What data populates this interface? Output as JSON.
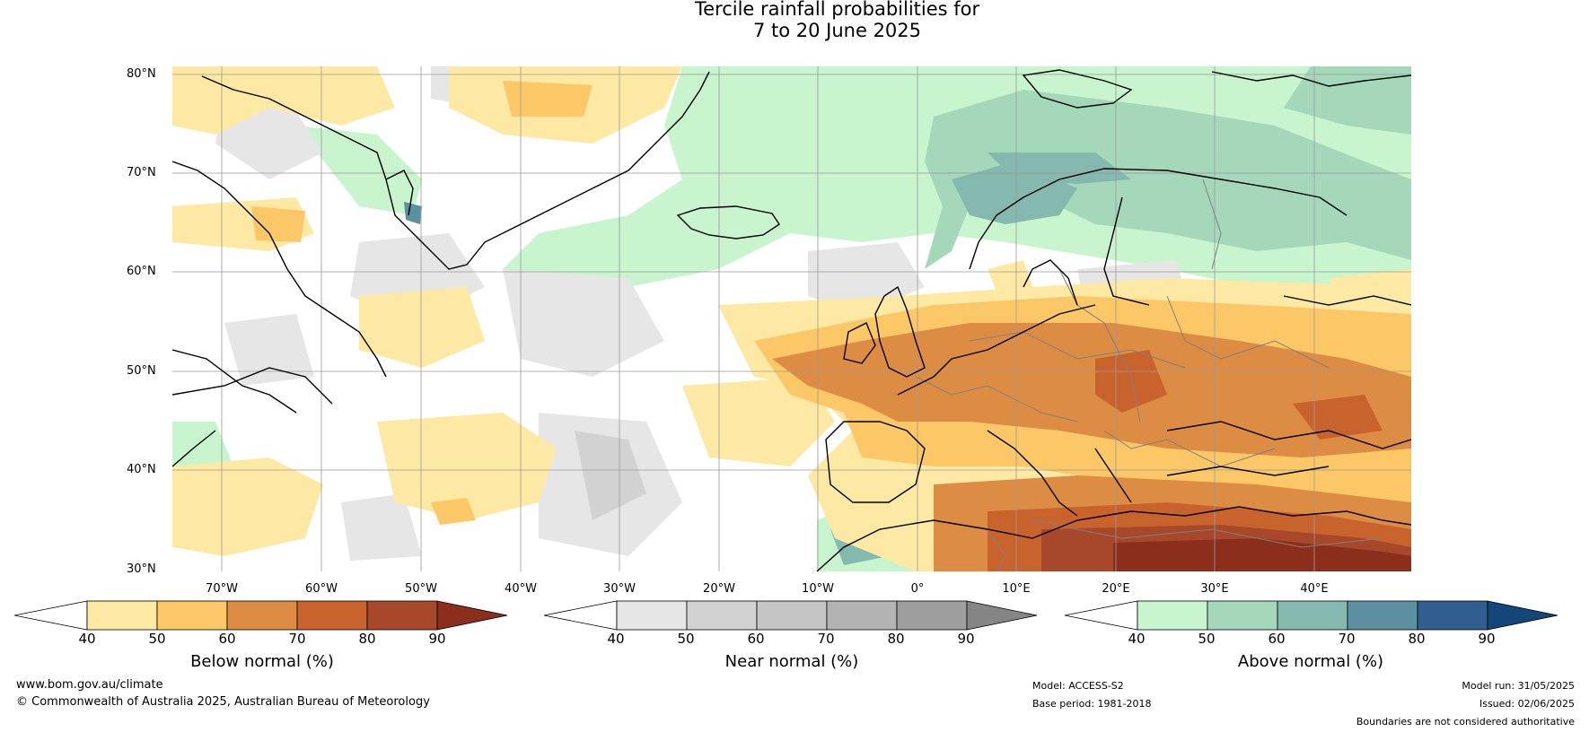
{
  "title": {
    "line1": "Tercile rainfall probabilities for",
    "line2": "7 to 20 June 2025"
  },
  "map": {
    "lat_labels": [
      "80°N",
      "70°N",
      "60°N",
      "50°N",
      "40°N",
      "30°N"
    ],
    "lon_labels": [
      "70°W",
      "60°W",
      "50°W",
      "40°W",
      "30°W",
      "20°W",
      "10°W",
      "0°",
      "10°E",
      "20°E",
      "30°E",
      "40°E"
    ],
    "colors": {
      "below": [
        "#fde9a4",
        "#fbc767",
        "#dd8d43",
        "#c8632e",
        "#a8482a",
        "#8b2e1c"
      ],
      "near": [
        "#e6e6e6",
        "#d2d2d2",
        "#c5c5c5",
        "#b3b3b3",
        "#9e9e9e",
        "#858585"
      ],
      "above": [
        "#c8f5cd",
        "#a5d8bb",
        "#85b8ae",
        "#5b90a0",
        "#2f5f8f",
        "#134779"
      ],
      "coastline": "#000000",
      "borders": "#808080"
    }
  },
  "colorbars": [
    {
      "label": "Below normal (%)",
      "ticks": [
        "40",
        "50",
        "60",
        "70",
        "80",
        "90"
      ]
    },
    {
      "label": "Near normal (%)",
      "ticks": [
        "40",
        "50",
        "60",
        "70",
        "80",
        "90"
      ]
    },
    {
      "label": "Above normal (%)",
      "ticks": [
        "40",
        "50",
        "60",
        "70",
        "80",
        "90"
      ]
    }
  ],
  "footer": {
    "website": "www.bom.gov.au/climate",
    "copyright": "© Commonwealth of Australia 2025, Australian Bureau of Meteorology",
    "model": "Model: ACCESS-S2",
    "base_period": "Base period: 1981-2018",
    "model_run": "Model run: 31/05/2025",
    "issued": "Issued: 02/06/2025",
    "disclaimer": "Boundaries are not considered authoritative"
  }
}
